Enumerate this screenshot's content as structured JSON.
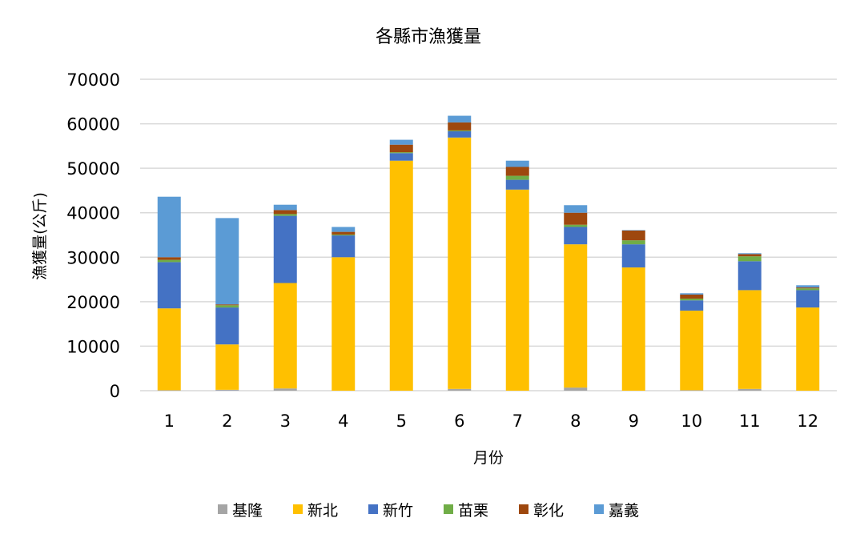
{
  "chart_data": {
    "type": "bar",
    "stacked": true,
    "title": "各縣市漁獲量",
    "xlabel": "月份",
    "ylabel": "漁獲量(公斤)",
    "ylim": [
      0,
      70000
    ],
    "yticks": [
      "0",
      "10000",
      "20000",
      "30000",
      "40000",
      "50000",
      "60000",
      "70000"
    ],
    "yticks_values": [
      0,
      10000,
      20000,
      30000,
      40000,
      50000,
      60000,
      70000
    ],
    "grid": true,
    "legend_position": "bottom",
    "categories": [
      "1",
      "2",
      "3",
      "4",
      "5",
      "6",
      "7",
      "8",
      "9",
      "10",
      "11",
      "12"
    ],
    "series": [
      {
        "name": "基隆",
        "color": "#A5A5A5",
        "values": [
          100,
          200,
          500,
          0,
          0,
          400,
          0,
          700,
          0,
          100,
          400,
          0
        ]
      },
      {
        "name": "新北",
        "color": "#FFC000",
        "values": [
          18400,
          10200,
          23700,
          30000,
          51700,
          56500,
          45200,
          32200,
          27700,
          17900,
          22200,
          18700
        ]
      },
      {
        "name": "新竹",
        "color": "#4472C4",
        "values": [
          10400,
          8300,
          15100,
          4900,
          1700,
          1400,
          2200,
          3900,
          5200,
          2300,
          6500,
          3900
        ]
      },
      {
        "name": "苗栗",
        "color": "#70AD47",
        "values": [
          500,
          500,
          400,
          200,
          200,
          200,
          900,
          500,
          900,
          400,
          1100,
          400
        ]
      },
      {
        "name": "彰化",
        "color": "#9E480E",
        "values": [
          600,
          200,
          900,
          600,
          1700,
          1800,
          2000,
          2700,
          2200,
          900,
          500,
          200
        ]
      },
      {
        "name": "嘉義",
        "color": "#5B9BD5",
        "values": [
          13600,
          19400,
          1200,
          1100,
          1100,
          1500,
          1400,
          1700,
          100,
          300,
          200,
          500
        ]
      }
    ]
  }
}
